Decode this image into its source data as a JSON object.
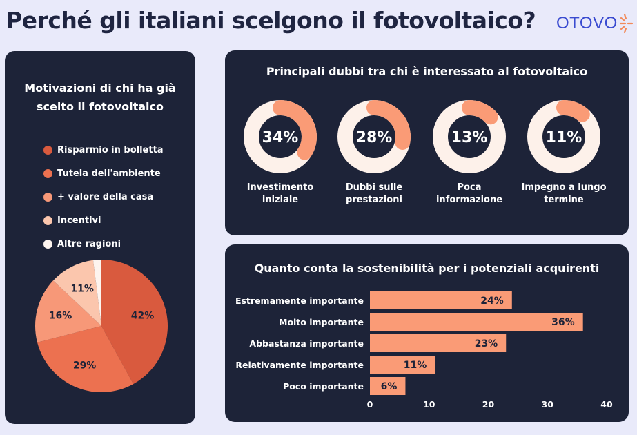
{
  "header": {
    "title": "Perché gli italiani scelgono il fotovoltaico?",
    "logo_text": "OTOVO"
  },
  "colors": {
    "panel": "#1d2338",
    "background": "#e9eafa",
    "accent": "#fa9b76",
    "donut_track": "#fdf1ea"
  },
  "chart_data": [
    {
      "type": "pie",
      "title": "Motivazioni di chi ha già scelto il fotovoltaico",
      "legend_position": "top",
      "slices": [
        {
          "label": "Risparmio in bolletta",
          "value": 42,
          "text": "42%",
          "color": "#d95a3e"
        },
        {
          "label": "Tutela dell'ambiente",
          "value": 29,
          "text": "29%",
          "color": "#ec7150"
        },
        {
          "label": "+ valore della casa",
          "value": 16,
          "text": "16%",
          "color": "#f79878"
        },
        {
          "label": "Incentivi",
          "value": 11,
          "text": "11%",
          "color": "#fbc6ad"
        },
        {
          "label": "Altre ragioni",
          "value": 2,
          "text": "",
          "color": "#fdf4ef"
        }
      ]
    },
    {
      "type": "pie",
      "title": "Principali dubbi tra chi è interessato al fotovoltaico",
      "donuts": [
        {
          "label_lines": [
            "Investimento",
            "iniziale"
          ],
          "value": 34,
          "text": "34%"
        },
        {
          "label_lines": [
            "Dubbi sulle",
            "prestazioni"
          ],
          "value": 28,
          "text": "28%"
        },
        {
          "label_lines": [
            "Poca",
            "informazione"
          ],
          "value": 13,
          "text": "13%"
        },
        {
          "label_lines": [
            "Impegno a lungo",
            "termine"
          ],
          "value": 11,
          "text": "11%"
        }
      ]
    },
    {
      "type": "bar",
      "orientation": "horizontal",
      "title": "Quanto conta la sostenibilità per i potenziali acquirenti",
      "categories": [
        "Estremamente importante",
        "Molto importante",
        "Abbastanza importante",
        "Relativamente importante",
        "Poco importante"
      ],
      "values": [
        24,
        36,
        23,
        11,
        6
      ],
      "value_labels": [
        "24%",
        "36%",
        "23%",
        "11%",
        "6%"
      ],
      "xlim": [
        0,
        40
      ],
      "xticks": [
        "0",
        "10",
        "20",
        "30",
        "40"
      ],
      "grid": false
    }
  ]
}
